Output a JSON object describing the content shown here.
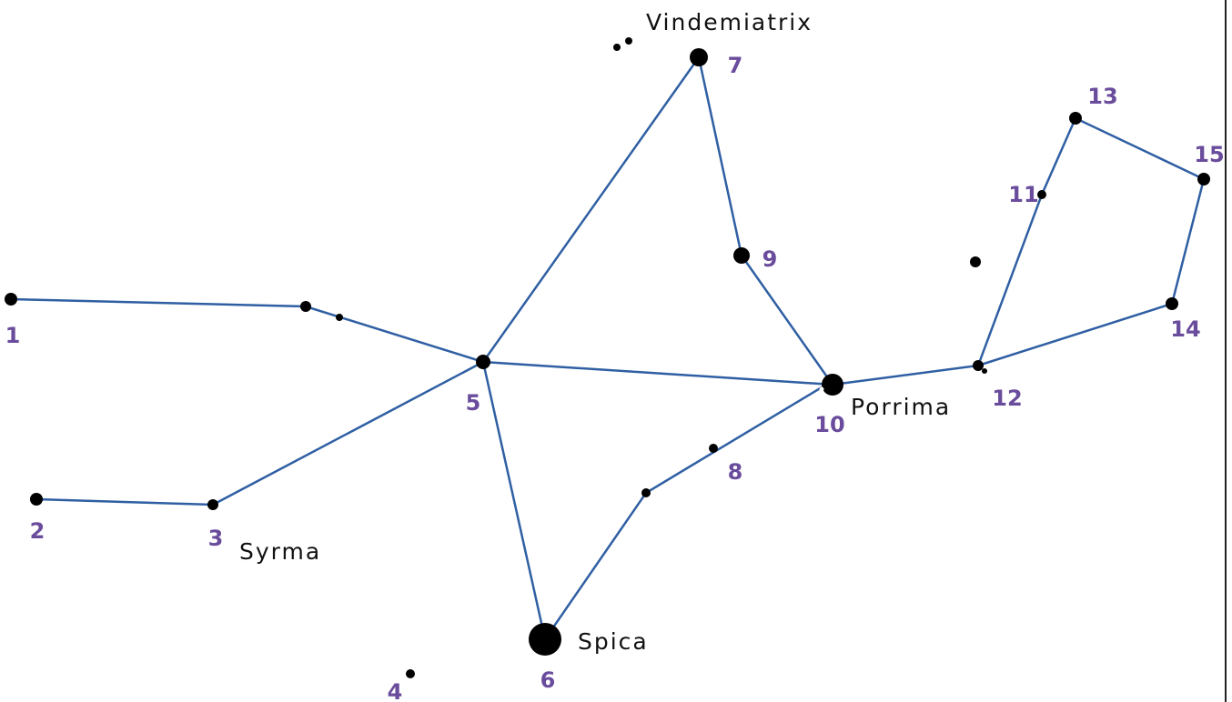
{
  "stars": [
    {
      "label": "1"
    },
    {
      "label": "2"
    },
    {
      "label": "3",
      "name": "Syrma"
    },
    {
      "label": "4"
    },
    {
      "label": "5"
    },
    {
      "label": "6",
      "name": "Spica"
    },
    {
      "label": "7",
      "name": "Vindemiatrix"
    },
    {
      "label": "8"
    },
    {
      "label": "9"
    },
    {
      "label": "10",
      "name": "Porrima"
    },
    {
      "label": "11"
    },
    {
      "label": "12"
    },
    {
      "label": "13"
    },
    {
      "label": "14"
    },
    {
      "label": "15"
    }
  ]
}
